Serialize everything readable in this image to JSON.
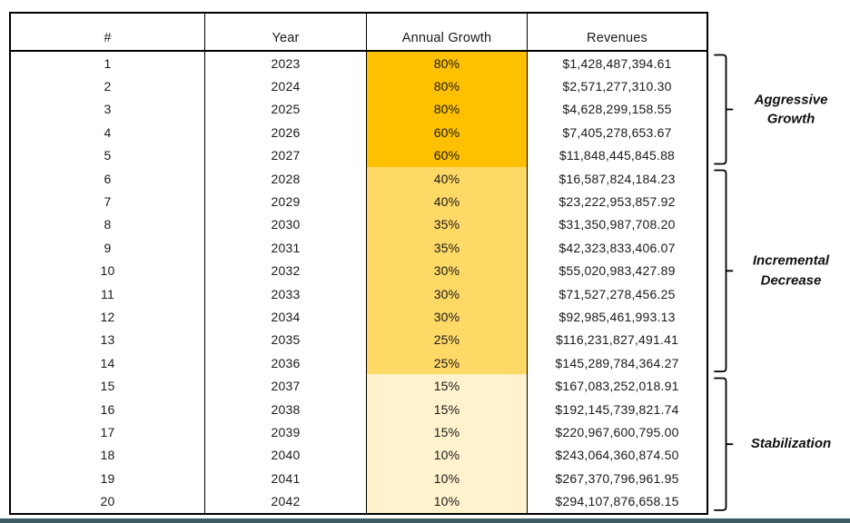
{
  "chart_data": {
    "type": "table",
    "columns": [
      "#",
      "Year",
      "Annual Growth",
      "Revenues"
    ],
    "rows": [
      [
        "1",
        "2023",
        "80%",
        "$1,428,487,394.61"
      ],
      [
        "2",
        "2024",
        "80%",
        "$2,571,277,310.30"
      ],
      [
        "3",
        "2025",
        "80%",
        "$4,628,299,158.55"
      ],
      [
        "4",
        "2026",
        "60%",
        "$7,405,278,653.67"
      ],
      [
        "5",
        "2027",
        "60%",
        "$11,848,445,845.88"
      ],
      [
        "6",
        "2028",
        "40%",
        "$16,587,824,184.23"
      ],
      [
        "7",
        "2029",
        "40%",
        "$23,222,953,857.92"
      ],
      [
        "8",
        "2030",
        "35%",
        "$31,350,987,708.20"
      ],
      [
        "9",
        "2031",
        "35%",
        "$42,323,833,406.07"
      ],
      [
        "10",
        "2032",
        "30%",
        "$55,020,983,427.89"
      ],
      [
        "11",
        "2033",
        "30%",
        "$71,527,278,456.25"
      ],
      [
        "12",
        "2034",
        "30%",
        "$92,985,461,993.13"
      ],
      [
        "13",
        "2035",
        "25%",
        "$116,231,827,491.41"
      ],
      [
        "14",
        "2036",
        "25%",
        "$145,289,784,364.27"
      ],
      [
        "15",
        "2037",
        "15%",
        "$167,083,252,018.91"
      ],
      [
        "16",
        "2038",
        "15%",
        "$192,145,739,821.74"
      ],
      [
        "17",
        "2039",
        "15%",
        "$220,967,600,795.00"
      ],
      [
        "18",
        "2040",
        "10%",
        "$243,064,360,874.50"
      ],
      [
        "19",
        "2041",
        "10%",
        "$267,370,796,961.95"
      ],
      [
        "20",
        "2042",
        "10%",
        "$294,107,876,658.15"
      ]
    ],
    "groups": [
      {
        "label": "Aggressive Growth",
        "label_lines": [
          "Aggressive",
          "Growth"
        ],
        "row_range": [
          1,
          5
        ],
        "fill": "#FFC000"
      },
      {
        "label": "Incremental Decrease",
        "label_lines": [
          "Incremental",
          "Decrease"
        ],
        "row_range": [
          6,
          14
        ],
        "fill": "#FFD966"
      },
      {
        "label": "Stabilization",
        "label_lines": [
          "Stabilization"
        ],
        "row_range": [
          15,
          20
        ],
        "fill": "#FFF2CC"
      }
    ],
    "highlighted_column": "Annual Growth",
    "grid": "outer-border, column-separators, header-underline only",
    "legend_position": "right-braces"
  },
  "colors": {
    "border": "#000000",
    "footer_bar": "#3E5C66",
    "background": "#FFFFFF"
  }
}
